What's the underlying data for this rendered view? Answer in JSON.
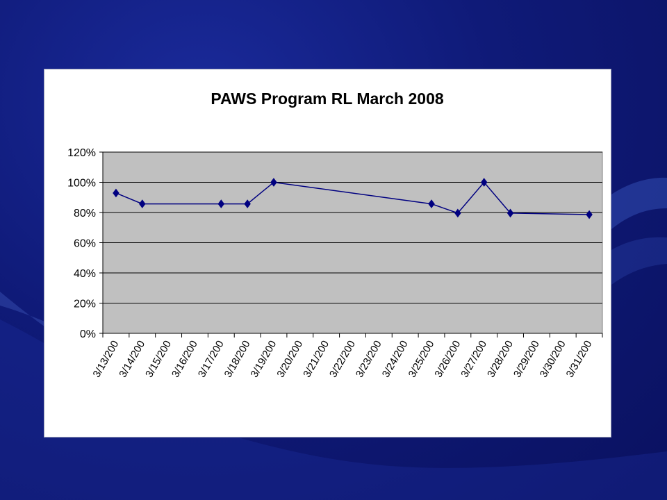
{
  "colors": {
    "background": "#0f1a78",
    "plot_area": "#c0c0c0",
    "series_line": "#000080",
    "gridline": "#000000"
  },
  "chart_data": {
    "type": "line",
    "title": "PAWS Program RL March 2008",
    "xlabel": "",
    "ylabel": "",
    "y_ticks": [
      "0%",
      "20%",
      "40%",
      "60%",
      "80%",
      "100%",
      "120%"
    ],
    "ylim": [
      0,
      120
    ],
    "y_unit": "percent",
    "grid": true,
    "legend": "none",
    "categories": [
      "3/13/2008",
      "3/14/2008",
      "3/15/2008",
      "3/16/2008",
      "3/17/2008",
      "3/18/2008",
      "3/19/2008",
      "3/20/2008",
      "3/21/2008",
      "3/22/2008",
      "3/23/2008",
      "3/24/2008",
      "3/25/2008",
      "3/26/2008",
      "3/27/2008",
      "3/28/2008",
      "3/29/2008",
      "3/30/2008",
      "3/31/2008"
    ],
    "tick_labels": [
      "3/13/200",
      "3/14/200",
      "3/15/200",
      "3/16/200",
      "3/17/200",
      "3/18/200",
      "3/19/200",
      "3/20/200",
      "3/21/200",
      "3/22/200",
      "3/23/200",
      "3/24/200",
      "3/25/200",
      "3/26/200",
      "3/27/200",
      "3/28/200",
      "3/29/200",
      "3/30/200",
      "3/31/200"
    ],
    "series": [
      {
        "marker": "diamond",
        "points": [
          {
            "x": "3/13/2008",
            "y": 92.9
          },
          {
            "x": "3/14/2008",
            "y": 85.7
          },
          {
            "x": "3/17/2008",
            "y": 85.7
          },
          {
            "x": "3/18/2008",
            "y": 85.7
          },
          {
            "x": "3/19/2008",
            "y": 100
          },
          {
            "x": "3/25/2008",
            "y": 85.7
          },
          {
            "x": "3/26/2008",
            "y": 79.6
          },
          {
            "x": "3/27/2008",
            "y": 100
          },
          {
            "x": "3/28/2008",
            "y": 79.6
          },
          {
            "x": "3/31/2008",
            "y": 78.6
          }
        ]
      }
    ]
  }
}
